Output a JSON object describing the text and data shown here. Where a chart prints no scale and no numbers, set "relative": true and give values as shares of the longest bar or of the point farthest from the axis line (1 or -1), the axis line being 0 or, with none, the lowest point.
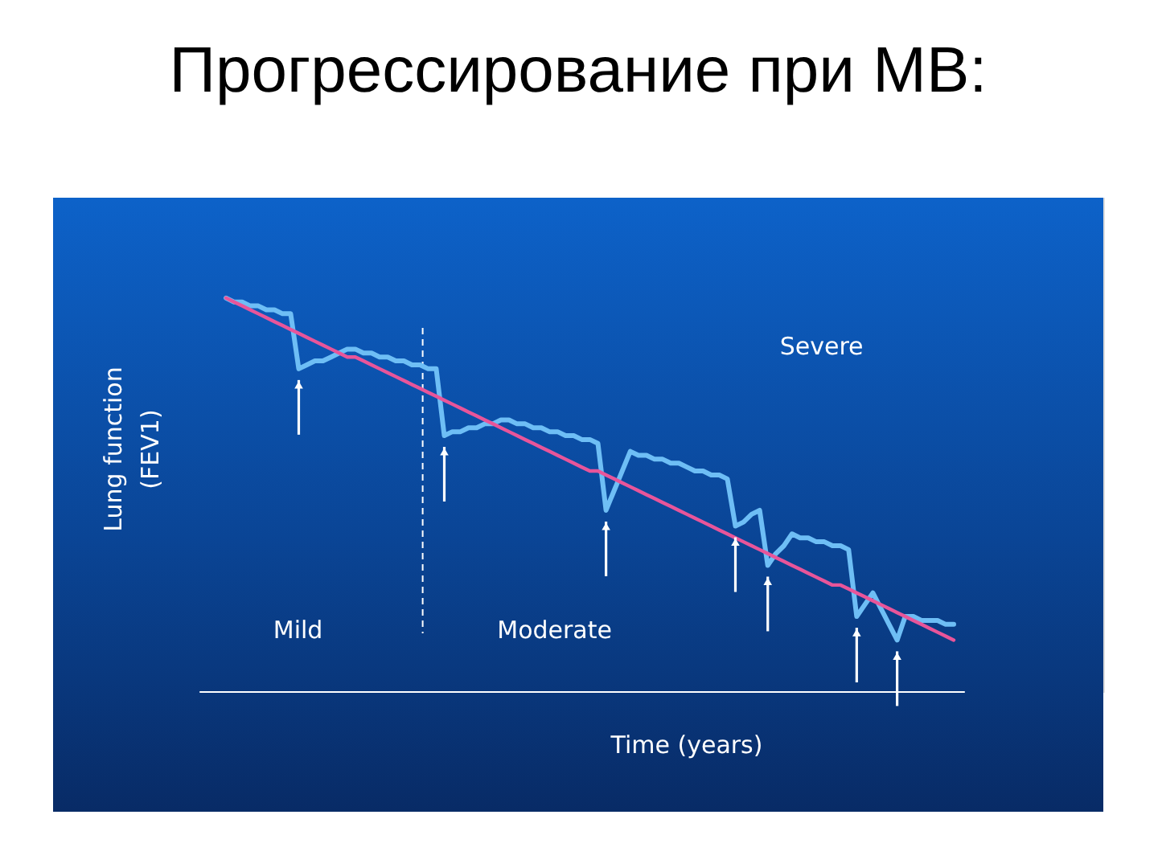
{
  "chart_data": {
    "type": "line",
    "title": "Прогрессирование при МВ:",
    "xlabel": "Time (years)",
    "ylabel": "Lung function (FEV1)",
    "relative": true,
    "categories": [
      null,
      null,
      null,
      null,
      null,
      null,
      null,
      null,
      null,
      null,
      null,
      null,
      null,
      null,
      null,
      null,
      null,
      null,
      null,
      null,
      null,
      null,
      null,
      null,
      null,
      null,
      null,
      null,
      null,
      null,
      null,
      null,
      null,
      null,
      null,
      null,
      null,
      null,
      null,
      null,
      null,
      null,
      null,
      null,
      null,
      null,
      null,
      null,
      null,
      null,
      null,
      null,
      null,
      null,
      null,
      null,
      null,
      null,
      null,
      null,
      null,
      null,
      null,
      null,
      null,
      null,
      null,
      null,
      null,
      null,
      null,
      null,
      null,
      null,
      null,
      null,
      null,
      null,
      null,
      null,
      null,
      null,
      null,
      null,
      null,
      null,
      null,
      null,
      null,
      null,
      null
    ],
    "series": [
      {
        "color": "#6ebef5",
        "values": [
          1.0,
          0.99,
          0.99,
          0.98,
          0.98,
          0.97,
          0.97,
          0.96,
          0.96,
          0.82,
          0.83,
          0.84,
          0.84,
          0.85,
          0.86,
          0.87,
          0.87,
          0.86,
          0.86,
          0.85,
          0.85,
          0.84,
          0.84,
          0.83,
          0.83,
          0.82,
          0.82,
          0.65,
          0.66,
          0.66,
          0.67,
          0.67,
          0.68,
          0.68,
          0.69,
          0.69,
          0.68,
          0.68,
          0.67,
          0.67,
          0.66,
          0.66,
          0.65,
          0.65,
          0.64,
          0.64,
          0.63,
          0.46,
          0.51,
          0.56,
          0.61,
          0.6,
          0.6,
          0.59,
          0.59,
          0.58,
          0.58,
          0.57,
          0.56,
          0.56,
          0.55,
          0.55,
          0.54,
          0.42,
          0.43,
          0.45,
          0.46,
          0.32,
          0.35,
          0.37,
          0.4,
          0.39,
          0.39,
          0.38,
          0.38,
          0.37,
          0.37,
          0.36,
          0.19,
          0.22,
          0.25,
          0.21,
          0.17,
          0.13,
          0.19,
          0.19,
          0.18,
          0.18,
          0.18,
          0.17,
          0.17
        ]
      },
      {
        "type": "line",
        "color": "#e8559a",
        "values": [
          1.0,
          0.99,
          0.98,
          0.97,
          0.96,
          0.95,
          0.94,
          0.93,
          0.92,
          0.91,
          0.9,
          0.89,
          0.88,
          0.87,
          0.86,
          0.85,
          0.85,
          0.84,
          0.83,
          0.82,
          0.81,
          0.8,
          0.79,
          0.78,
          0.77,
          0.76,
          0.75,
          0.74,
          0.73,
          0.72,
          0.71,
          0.7,
          0.69,
          0.68,
          0.67,
          0.66,
          0.65,
          0.64,
          0.63,
          0.62,
          0.61,
          0.6,
          0.59,
          0.58,
          0.57,
          0.56,
          0.56,
          0.55,
          0.54,
          0.53,
          0.52,
          0.51,
          0.5,
          0.49,
          0.48,
          0.47,
          0.46,
          0.45,
          0.44,
          0.43,
          0.42,
          0.41,
          0.4,
          0.39,
          0.38,
          0.37,
          0.36,
          0.35,
          0.34,
          0.33,
          0.32,
          0.31,
          0.3,
          0.29,
          0.28,
          0.27,
          0.27,
          0.26,
          0.25,
          0.24,
          0.23,
          0.22,
          0.21,
          0.2,
          0.19,
          0.18,
          0.17,
          0.16,
          0.15,
          0.14,
          0.13
        ]
      }
    ],
    "annotations": [
      "Mild",
      "Moderate",
      "Severe"
    ]
  }
}
